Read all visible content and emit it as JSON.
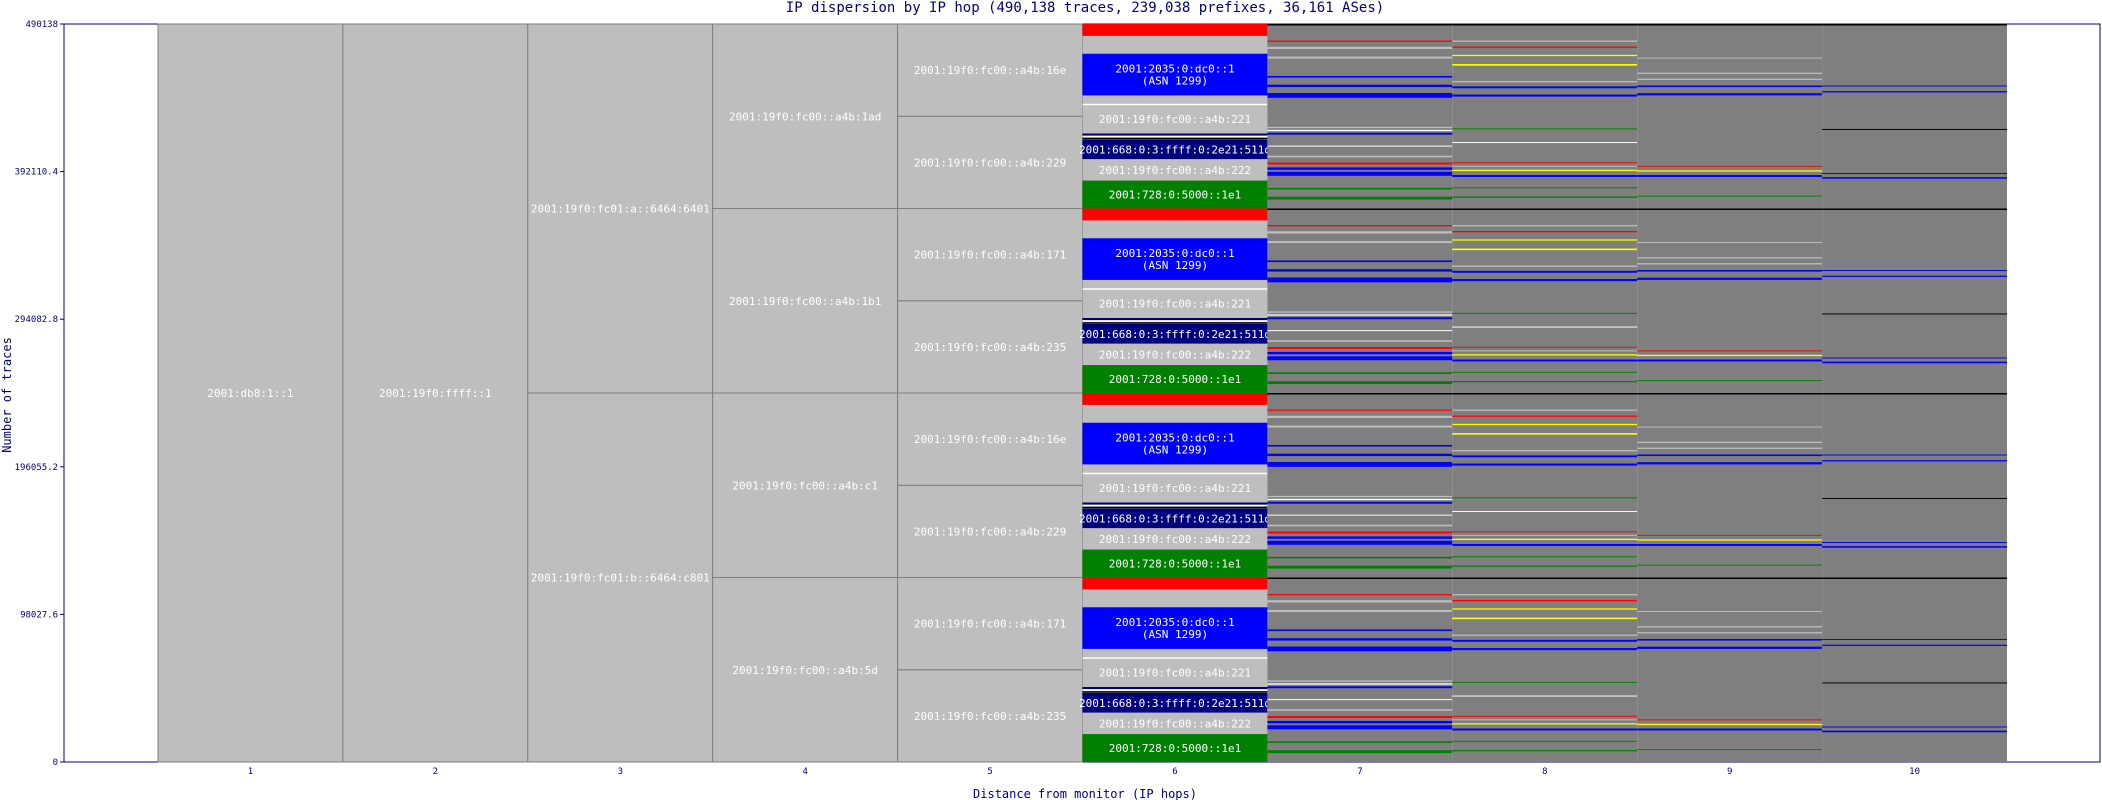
{
  "chart_data": {
    "type": "stacked-column",
    "title": "IP dispersion by IP hop (490,138 traces, 239,038 prefixes, 36,161 ASes)",
    "xlabel": "Distance from monitor (IP hops)",
    "ylabel": "Number of traces",
    "y_ticks": [
      "0",
      "98027.6",
      "196055.2",
      "294082.8",
      "392110.4",
      "490138"
    ],
    "ylim": [
      0,
      490138
    ],
    "x_ticks": [
      "1",
      "2",
      "3",
      "4",
      "5",
      "6",
      "7",
      "8",
      "9",
      "10"
    ],
    "colors": {
      "grey": "#bebebe",
      "dark": "#7f7f7f",
      "blue": "#0000ff",
      "navy": "#00007f",
      "green": "#008000",
      "red": "#ff0000",
      "yellow": "#ffff00",
      "black": "#000000",
      "white": "#ffffff",
      "axis": "#000080"
    },
    "hop_blocks": [
      {
        "hop": 1,
        "label": "2001:db8:1::1",
        "from": 0,
        "to": 490138
      },
      {
        "hop": 2,
        "label": "2001:19f0:ffff::1",
        "from": 0,
        "to": 490138
      },
      {
        "hop": 3,
        "label": "2001:19f0:fc01:b::6464:c801",
        "from": 0,
        "to": 245069
      },
      {
        "hop": 3,
        "label": "2001:19f0:fc01:a::6464:6401",
        "from": 245069,
        "to": 490138
      },
      {
        "hop": 4,
        "label": "2001:19f0:fc00::a4b:5d",
        "from": 0,
        "to": 122534
      },
      {
        "hop": 4,
        "label": "2001:19f0:fc00::a4b:c1",
        "from": 122534,
        "to": 245069
      },
      {
        "hop": 4,
        "label": "2001:19f0:fc00::a4b:1b1",
        "from": 245069,
        "to": 367603
      },
      {
        "hop": 4,
        "label": "2001:19f0:fc00::a4b:1ad",
        "from": 367603,
        "to": 490138
      },
      {
        "hop": 5,
        "label": "2001:19f0:fc00::a4b:235",
        "from": 0,
        "to": 61267
      },
      {
        "hop": 5,
        "label": "2001:19f0:fc00::a4b:171",
        "from": 61267,
        "to": 122534
      },
      {
        "hop": 5,
        "label": "2001:19f0:fc00::a4b:229",
        "from": 122534,
        "to": 183802
      },
      {
        "hop": 5,
        "label": "2001:19f0:fc00::a4b:16e",
        "from": 183802,
        "to": 245069
      },
      {
        "hop": 5,
        "label": "2001:19f0:fc00::a4b:235",
        "from": 245069,
        "to": 306336
      },
      {
        "hop": 5,
        "label": "2001:19f0:fc00::a4b:171",
        "from": 306336,
        "to": 367603
      },
      {
        "hop": 5,
        "label": "2001:19f0:fc00::a4b:229",
        "from": 367603,
        "to": 428871
      },
      {
        "hop": 5,
        "label": "2001:19f0:fc00::a4b:16e",
        "from": 428871,
        "to": 490138
      }
    ],
    "hop6_repeating_block": {
      "upper_group": [
        {
          "color": "grey",
          "from": 26,
          "to": 29
        },
        {
          "color": "blue",
          "label": "2001:2035:0:dc0::1",
          "label2": "(ASN 1299)",
          "from": 19,
          "to": 26
        },
        {
          "color": "red",
          "from": 29,
          "to": 31
        }
      ],
      "lower_group": [
        {
          "color": "green",
          "label": "2001:728:0:5000::1e1",
          "from": 0,
          "to": 4.7
        },
        {
          "color": "grey",
          "label": "2001:19f0:fc00::a4b:222",
          "from": 4.7,
          "to": 8.3
        },
        {
          "color": "navy",
          "label": "2001:668:0:3:ffff:0:2e21:511d",
          "from": 8.3,
          "to": 11.6
        }
      ],
      "mid_grey_label": "2001:19f0:fc00::a4b:221"
    }
  }
}
